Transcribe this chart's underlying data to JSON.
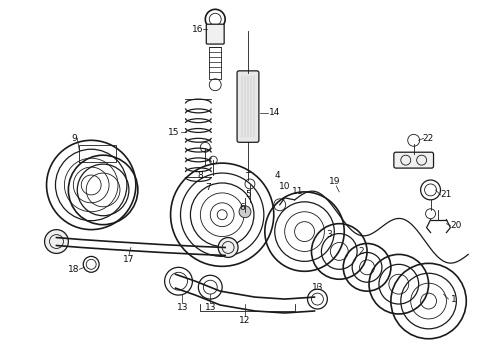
{
  "bg_color": "#ffffff",
  "line_color": "#1a1a1a",
  "figsize": [
    4.9,
    3.6
  ],
  "dpi": 100,
  "lw_thin": 0.6,
  "lw_med": 0.9,
  "lw_thick": 1.2
}
